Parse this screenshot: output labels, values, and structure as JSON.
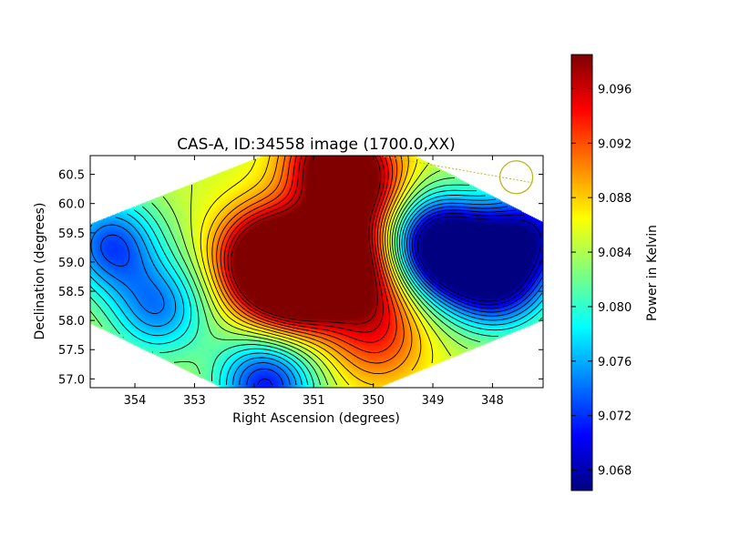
{
  "chart_data": {
    "type": "heatmap",
    "title": "CAS-A, ID:34558 image (1700.0,XX)",
    "xlabel": "Right Ascension (degrees)",
    "ylabel": "Declination (degrees)",
    "colorbar_label": "Power in Kelvin",
    "colormap": "jet",
    "x_axis_inverted": true,
    "xlim": [
      354.75,
      347.15
    ],
    "ylim": [
      56.85,
      60.82
    ],
    "x_ticks": [
      354,
      353,
      352,
      351,
      350,
      349,
      348
    ],
    "x_tick_labels": [
      "354",
      "353",
      "352",
      "351",
      "350",
      "349",
      "348"
    ],
    "y_ticks": [
      57.0,
      57.5,
      58.0,
      58.5,
      59.0,
      59.5,
      60.0,
      60.5
    ],
    "y_tick_labels": [
      "57.0",
      "57.5",
      "58.0",
      "58.5",
      "59.0",
      "59.5",
      "60.0",
      "60.5"
    ],
    "colorbar_range": [
      9.0665,
      9.0985
    ],
    "colorbar_ticks": [
      9.068,
      9.072,
      9.076,
      9.08,
      9.084,
      9.088,
      9.092,
      9.096
    ],
    "colorbar_tick_labels": [
      "9.068",
      "9.072",
      "9.076",
      "9.080",
      "9.084",
      "9.088",
      "9.092",
      "9.096"
    ],
    "footprint_polygon": [
      [
        354.75,
        59.65
      ],
      [
        351.85,
        60.82
      ],
      [
        349.3,
        60.82
      ],
      [
        347.15,
        59.68
      ],
      [
        347.15,
        58.0
      ],
      [
        349.9,
        56.85
      ],
      [
        352.55,
        56.85
      ],
      [
        354.75,
        57.95
      ]
    ],
    "hotspots": [
      {
        "ra": 351.8,
        "dec": 59.1,
        "value": 9.098
      },
      {
        "ra": 350.6,
        "dec": 59.2,
        "value": 9.098
      },
      {
        "ra": 350.3,
        "dec": 60.3,
        "value": 9.097
      },
      {
        "ra": 350.7,
        "dec": 60.8,
        "value": 9.096
      },
      {
        "ra": 351.2,
        "dec": 58.55,
        "value": 9.096
      },
      {
        "ra": 350.1,
        "dec": 58.5,
        "value": 9.093
      },
      {
        "ra": 349.9,
        "dec": 57.6,
        "value": 9.091
      },
      {
        "ra": 351.6,
        "dec": 58.8,
        "value": 9.094
      }
    ],
    "coldspots": [
      {
        "ra": 349.0,
        "dec": 59.3,
        "value": 9.068
      },
      {
        "ra": 348.3,
        "dec": 59.0,
        "value": 9.071
      },
      {
        "ra": 351.8,
        "dec": 56.9,
        "value": 9.071
      },
      {
        "ra": 354.4,
        "dec": 59.3,
        "value": 9.073
      },
      {
        "ra": 353.6,
        "dec": 58.2,
        "value": 9.075
      },
      {
        "ra": 347.3,
        "dec": 59.55,
        "value": 9.072
      },
      {
        "ra": 347.8,
        "dec": 58.6,
        "value": 9.075
      }
    ],
    "background_value": 9.085,
    "beam_marker": {
      "ra": 347.6,
      "dec": 60.45,
      "color": "#b8b820"
    }
  }
}
